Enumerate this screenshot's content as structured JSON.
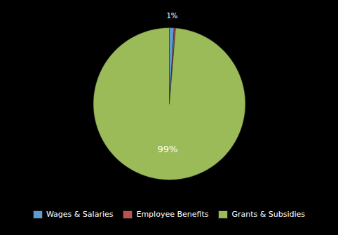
{
  "chart_data": {
    "type": "pie",
    "categories": [
      "Wages & Salaries",
      "Employee Benefits",
      "Grants & Subsidies"
    ],
    "values": [
      1,
      0.3,
      98.7
    ],
    "colors": [
      "#5b9bd5",
      "#c0504d",
      "#9bbb59"
    ],
    "data_labels": true,
    "value_labels": [
      "1%",
      null,
      "99%"
    ],
    "legend": "bottom"
  }
}
